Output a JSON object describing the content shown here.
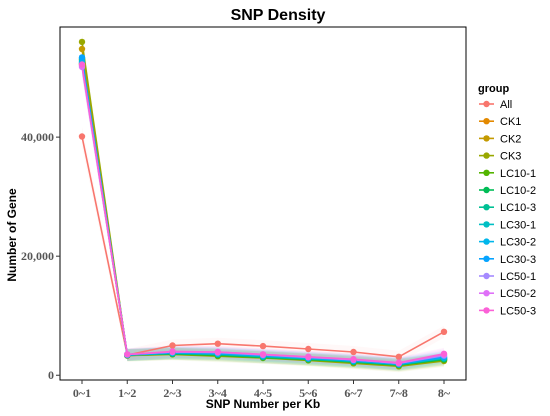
{
  "chart_data": {
    "type": "line",
    "title": "SNP Density",
    "xlabel": "SNP Number per Kb",
    "ylabel": "Number of Gene",
    "categories": [
      "0~1",
      "1~2",
      "2~3",
      "3~4",
      "4~5",
      "5~6",
      "6~7",
      "7~8",
      "8~"
    ],
    "ylim": [
      -800,
      58500
    ],
    "yticks": [
      0,
      20000,
      40000
    ],
    "ytick_labels": [
      "0",
      "20,000",
      "40,000"
    ],
    "grid": false,
    "legend_title": "group",
    "legend_position": "right",
    "series": [
      {
        "name": "All",
        "color": "#F8766D",
        "values": [
          40100,
          3400,
          5000,
          5300,
          4900,
          4400,
          3900,
          3100,
          7300
        ]
      },
      {
        "name": "CK1",
        "color": "#E38900",
        "values": [
          52200,
          3400,
          3700,
          3500,
          3100,
          2700,
          2300,
          1800,
          2700
        ]
      },
      {
        "name": "CK2",
        "color": "#C49A00",
        "values": [
          54800,
          3300,
          3600,
          3400,
          3000,
          2600,
          2100,
          1600,
          2500
        ]
      },
      {
        "name": "CK3",
        "color": "#99A800",
        "values": [
          56000,
          3300,
          3500,
          3200,
          2900,
          2500,
          2000,
          1500,
          2400
        ]
      },
      {
        "name": "LC10-1",
        "color": "#53B400",
        "values": [
          53000,
          3400,
          3600,
          3300,
          3000,
          2600,
          2200,
          1700,
          2600
        ]
      },
      {
        "name": "LC10-2",
        "color": "#00BC56",
        "values": [
          52400,
          3400,
          3600,
          3400,
          3000,
          2700,
          2200,
          1700,
          2700
        ]
      },
      {
        "name": "LC10-3",
        "color": "#00C094",
        "values": [
          52800,
          3400,
          3700,
          3500,
          3100,
          2700,
          2300,
          1800,
          2800
        ]
      },
      {
        "name": "LC30-1",
        "color": "#00BFC4",
        "values": [
          53200,
          3400,
          3700,
          3600,
          3200,
          2800,
          2400,
          1800,
          2900
        ]
      },
      {
        "name": "LC30-2",
        "color": "#00B6EB",
        "values": [
          52600,
          3400,
          3800,
          3600,
          3300,
          2900,
          2400,
          1900,
          3000
        ]
      },
      {
        "name": "LC30-3",
        "color": "#06A4FF",
        "values": [
          53400,
          3400,
          3800,
          3700,
          3300,
          2900,
          2500,
          1900,
          3100
        ]
      },
      {
        "name": "LC50-1",
        "color": "#A58AFF",
        "values": [
          52000,
          3500,
          3900,
          3800,
          3400,
          3000,
          2600,
          2000,
          3300
        ]
      },
      {
        "name": "LC50-2",
        "color": "#DF70F8",
        "values": [
          51800,
          3500,
          3900,
          3900,
          3500,
          3100,
          2600,
          2000,
          3500
        ]
      },
      {
        "name": "LC50-3",
        "color": "#FB61D7",
        "values": [
          52200,
          3500,
          4000,
          3900,
          3500,
          3100,
          2700,
          2100,
          3600
        ]
      }
    ]
  }
}
